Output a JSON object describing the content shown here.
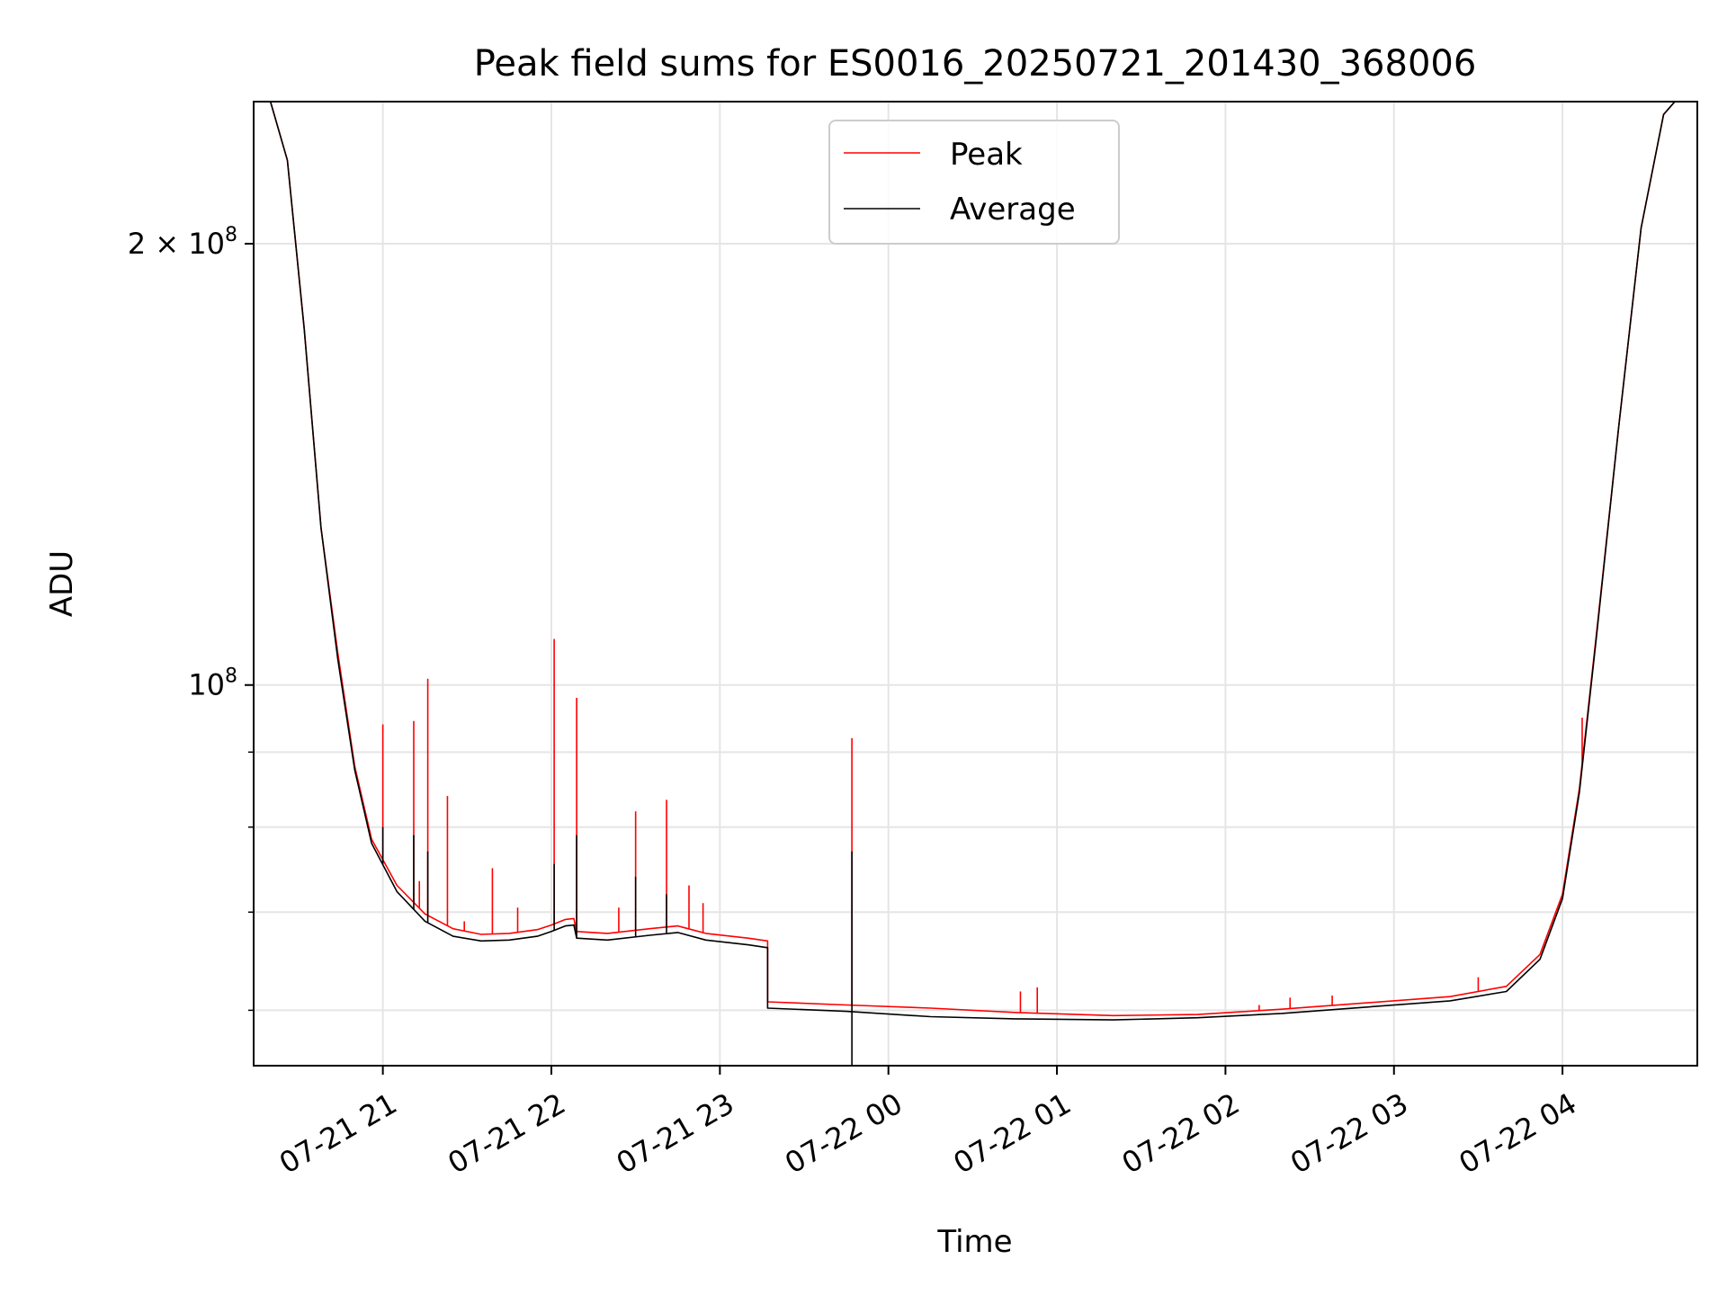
{
  "chart_data": {
    "type": "line",
    "title": "Peak field sums for ES0016_20250721_201430_368006",
    "xlabel": "Time",
    "ylabel": "ADU",
    "yscale": "log",
    "xlim": [
      "2025-07-21 20:14",
      "2025-07-22 04:48"
    ],
    "ylim": [
      55000000,
      250000000
    ],
    "x_ticks": [
      {
        "t": "2025-07-21 21:00",
        "label": "07-21 21"
      },
      {
        "t": "2025-07-21 22:00",
        "label": "07-21 22"
      },
      {
        "t": "2025-07-21 23:00",
        "label": "07-21 23"
      },
      {
        "t": "2025-07-22 00:00",
        "label": "07-22 00"
      },
      {
        "t": "2025-07-22 01:00",
        "label": "07-22 01"
      },
      {
        "t": "2025-07-22 02:00",
        "label": "07-22 02"
      },
      {
        "t": "2025-07-22 03:00",
        "label": "07-22 03"
      },
      {
        "t": "2025-07-22 04:00",
        "label": "07-22 04"
      }
    ],
    "y_major_ticks": [
      {
        "value": 100000000,
        "base": "10",
        "exp": "8"
      },
      {
        "value": 200000000,
        "base": "2 × 10",
        "exp": "8"
      }
    ],
    "y_minor_ticks": [
      60000000,
      70000000,
      80000000,
      90000000
    ],
    "grid": true,
    "legend": {
      "position": "top-center",
      "entries": [
        "Peak",
        "Average"
      ]
    },
    "series": [
      {
        "name": "Peak",
        "color": "#ff0000",
        "points": [
          [
            "2025-07-21 20:14",
            250000000
          ],
          [
            "2025-07-21 20:20",
            250000000
          ],
          [
            "2025-07-21 20:26",
            228000000
          ],
          [
            "2025-07-21 20:32",
            175000000
          ],
          [
            "2025-07-21 20:38",
            128000000
          ],
          [
            "2025-07-21 20:44",
            105000000
          ],
          [
            "2025-07-21 20:50",
            88000000
          ],
          [
            "2025-07-21 20:56",
            78500000
          ],
          [
            "2025-07-21 21:05",
            73000000
          ],
          [
            "2025-07-21 21:15",
            69800000
          ],
          [
            "2025-07-21 21:25",
            68200000
          ],
          [
            "2025-07-21 21:35",
            67600000
          ],
          [
            "2025-07-21 21:45",
            67700000
          ],
          [
            "2025-07-21 21:55",
            68100000
          ],
          [
            "2025-07-21 22:00",
            68600000
          ],
          [
            "2025-07-21 22:05",
            69200000
          ],
          [
            "2025-07-21 22:08",
            69300000
          ],
          [
            "2025-07-21 22:09",
            67900000
          ],
          [
            "2025-07-21 22:20",
            67700000
          ],
          [
            "2025-07-21 22:35",
            68200000
          ],
          [
            "2025-07-21 22:45",
            68500000
          ],
          [
            "2025-07-21 22:55",
            67700000
          ],
          [
            "2025-07-21 23:10",
            67200000
          ],
          [
            "2025-07-21 23:17",
            66900000
          ],
          [
            "2025-07-21 23:17",
            60800000
          ],
          [
            "2025-07-21 23:45",
            60500000
          ],
          [
            "2025-07-22 00:15",
            60200000
          ],
          [
            "2025-07-22 00:45",
            59800000
          ],
          [
            "2025-07-22 01:20",
            59500000
          ],
          [
            "2025-07-22 01:50",
            59600000
          ],
          [
            "2025-07-22 02:20",
            60100000
          ],
          [
            "2025-07-22 02:50",
            60700000
          ],
          [
            "2025-07-22 03:20",
            61300000
          ],
          [
            "2025-07-22 03:40",
            62300000
          ],
          [
            "2025-07-22 03:52",
            65500000
          ],
          [
            "2025-07-22 04:00",
            72000000
          ],
          [
            "2025-07-22 04:06",
            85000000
          ],
          [
            "2025-07-22 04:12",
            108000000
          ],
          [
            "2025-07-22 04:20",
            150000000
          ],
          [
            "2025-07-22 04:28",
            205000000
          ],
          [
            "2025-07-22 04:36",
            245000000
          ],
          [
            "2025-07-22 04:40",
            250000000
          ],
          [
            "2025-07-22 04:48",
            250000000
          ]
        ],
        "spikes": [
          [
            "2025-07-21 21:00",
            94000000
          ],
          [
            "2025-07-21 21:11",
            94500000
          ],
          [
            "2025-07-21 21:13",
            73500000
          ],
          [
            "2025-07-21 21:16",
            101000000
          ],
          [
            "2025-07-21 21:23",
            84000000
          ],
          [
            "2025-07-21 21:29",
            69000000
          ],
          [
            "2025-07-21 21:39",
            75000000
          ],
          [
            "2025-07-21 21:48",
            70500000
          ],
          [
            "2025-07-21 22:01",
            107500000
          ],
          [
            "2025-07-21 22:09",
            98000000
          ],
          [
            "2025-07-21 22:24",
            70500000
          ],
          [
            "2025-07-21 22:30",
            82000000
          ],
          [
            "2025-07-21 22:41",
            83500000
          ],
          [
            "2025-07-21 22:49",
            73000000
          ],
          [
            "2025-07-21 22:54",
            71000000
          ],
          [
            "2025-07-21 23:47",
            92000000
          ],
          [
            "2025-07-22 00:47",
            61800000
          ],
          [
            "2025-07-22 00:53",
            62200000
          ],
          [
            "2025-07-22 02:12",
            60500000
          ],
          [
            "2025-07-22 02:23",
            61200000
          ],
          [
            "2025-07-22 02:38",
            61400000
          ],
          [
            "2025-07-22 03:30",
            63200000
          ],
          [
            "2025-07-22 04:07",
            95000000
          ]
        ]
      },
      {
        "name": "Average",
        "color": "#000000",
        "points": [
          [
            "2025-07-21 20:14",
            250000000
          ],
          [
            "2025-07-21 20:20",
            250000000
          ],
          [
            "2025-07-21 20:26",
            228000000
          ],
          [
            "2025-07-21 20:32",
            175000000
          ],
          [
            "2025-07-21 20:38",
            128000000
          ],
          [
            "2025-07-21 20:44",
            104000000
          ],
          [
            "2025-07-21 20:50",
            87500000
          ],
          [
            "2025-07-21 20:56",
            78000000
          ],
          [
            "2025-07-21 21:05",
            72300000
          ],
          [
            "2025-07-21 21:15",
            69000000
          ],
          [
            "2025-07-21 21:25",
            67400000
          ],
          [
            "2025-07-21 21:35",
            66900000
          ],
          [
            "2025-07-21 21:45",
            67000000
          ],
          [
            "2025-07-21 21:55",
            67400000
          ],
          [
            "2025-07-21 22:00",
            67900000
          ],
          [
            "2025-07-21 22:05",
            68500000
          ],
          [
            "2025-07-21 22:08",
            68600000
          ],
          [
            "2025-07-21 22:09",
            67200000
          ],
          [
            "2025-07-21 22:20",
            67000000
          ],
          [
            "2025-07-21 22:35",
            67500000
          ],
          [
            "2025-07-21 22:45",
            67800000
          ],
          [
            "2025-07-21 22:55",
            67000000
          ],
          [
            "2025-07-21 23:10",
            66500000
          ],
          [
            "2025-07-21 23:17",
            66200000
          ],
          [
            "2025-07-21 23:17",
            60200000
          ],
          [
            "2025-07-21 23:45",
            59900000
          ],
          [
            "2025-07-22 00:15",
            59400000
          ],
          [
            "2025-07-22 00:45",
            59200000
          ],
          [
            "2025-07-22 01:20",
            59100000
          ],
          [
            "2025-07-22 01:50",
            59300000
          ],
          [
            "2025-07-22 02:20",
            59700000
          ],
          [
            "2025-07-22 02:50",
            60300000
          ],
          [
            "2025-07-22 03:20",
            60900000
          ],
          [
            "2025-07-22 03:40",
            61800000
          ],
          [
            "2025-07-22 03:52",
            65000000
          ],
          [
            "2025-07-22 04:00",
            71500000
          ],
          [
            "2025-07-22 04:06",
            84500000
          ],
          [
            "2025-07-22 04:12",
            107500000
          ],
          [
            "2025-07-22 04:20",
            150000000
          ],
          [
            "2025-07-22 04:28",
            205000000
          ],
          [
            "2025-07-22 04:36",
            245000000
          ],
          [
            "2025-07-22 04:40",
            250000000
          ],
          [
            "2025-07-22 04:48",
            250000000
          ]
        ],
        "spikes": [
          [
            "2025-07-21 21:00",
            80000000
          ],
          [
            "2025-07-21 21:11",
            79000000
          ],
          [
            "2025-07-21 21:16",
            77000000
          ],
          [
            "2025-07-21 22:01",
            75500000
          ],
          [
            "2025-07-21 22:09",
            79000000
          ],
          [
            "2025-07-21 22:30",
            74000000
          ],
          [
            "2025-07-21 22:41",
            72000000
          ],
          [
            "2025-07-21 23:47",
            77000000
          ],
          [
            "2025-07-21 23:47",
            55000000
          ]
        ]
      }
    ]
  }
}
